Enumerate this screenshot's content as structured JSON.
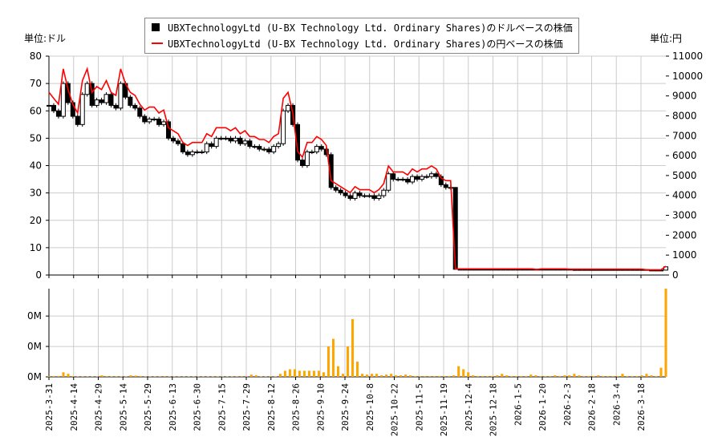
{
  "units": {
    "left": "単位:ドル",
    "right": "単位:円"
  },
  "legend": [
    "UBXTechnologyLtd (U-BX Technology Ltd. Ordinary Shares)のドルベースの株価",
    "UBXTechnologyLtd (U-BX Technology Ltd. Ordinary Shares)の円ベースの株価"
  ],
  "colors": {
    "usd_candle": "#000000",
    "jpy_line": "#ff0000",
    "volume": "#ffa500",
    "grid": "#cccccc"
  },
  "chart_data": [
    {
      "type": "line",
      "title": "",
      "x_tick_labels": [
        "2025-3-31",
        "2025-4-14",
        "2025-4-29",
        "2025-5-14",
        "2025-5-29",
        "2025-6-13",
        "2025-6-30",
        "2025-7-15",
        "2025-7-29",
        "2025-8-12",
        "2025-8-26",
        "2025-9-10",
        "2025-9-24",
        "2025-10-8",
        "2025-10-22",
        "2025-11-5",
        "2025-11-19",
        "2025-12-4",
        "2025-12-18",
        "2026-1-5",
        "2026-1-20",
        "2026-2-3",
        "2026-2-18",
        "2026-3-4",
        "2026-3-18"
      ],
      "y_left": {
        "label": "単位:ドル",
        "range": [
          0,
          80
        ],
        "ticks": [
          0,
          10,
          20,
          30,
          40,
          50,
          60,
          70,
          80
        ]
      },
      "y_right": {
        "label": "単位:円",
        "range": [
          0,
          11000
        ],
        "ticks": [
          0,
          1000,
          2000,
          3000,
          4000,
          5000,
          6000,
          7000,
          8000,
          9000,
          10000,
          11000
        ]
      },
      "grid": true,
      "legend_position": "top-center",
      "series": [
        {
          "name": "UBXTechnologyLtd (U-BX Technology Ltd. Ordinary Shares)のドルベースの株価",
          "style": "candlestick",
          "axis": "left",
          "close": [
            62,
            60,
            58,
            70,
            63,
            58,
            55,
            66,
            70,
            62,
            64,
            63,
            66,
            62,
            61,
            70,
            65,
            62,
            61,
            58,
            56,
            57,
            57,
            55,
            56,
            50,
            49,
            48,
            45,
            44,
            45,
            45,
            45,
            48,
            47,
            50,
            50,
            50,
            49,
            50,
            48,
            49,
            47,
            47,
            46,
            46,
            45,
            47,
            48,
            60,
            62,
            55,
            42,
            40,
            45,
            45,
            47,
            46,
            44,
            32,
            31,
            30,
            29,
            28,
            30,
            29,
            29,
            29,
            28,
            29,
            31,
            37,
            35,
            35,
            35,
            34,
            36,
            35,
            36,
            36,
            37,
            36,
            33,
            32,
            32,
            2.1,
            2.1,
            2.1,
            2.1,
            2.1,
            2.1,
            2.1,
            2.1,
            2.1,
            2.1,
            2.1,
            2.1,
            2.1,
            2.1,
            2.1,
            2.1,
            2.1,
            1.9,
            2.1,
            2.1,
            2.1,
            2.1,
            2.1,
            2.1,
            2.0,
            2.0,
            2.0,
            2.0,
            2.0,
            2.0,
            2.0,
            2.0,
            2.0,
            2.0,
            2.0,
            2.0,
            2.0,
            2.0,
            2.0,
            2.0,
            1.8,
            1.8,
            1.8,
            1.8,
            3.0
          ]
        },
        {
          "name": "UBXTechnologyLtd (U-BX Technology Ltd. Ordinary Shares)の円ベースの株価",
          "style": "line",
          "axis": "right",
          "values": [
            9180,
            8880,
            8580,
            10360,
            9320,
            8580,
            8140,
            9770,
            10360,
            9180,
            9470,
            9320,
            9770,
            9180,
            9030,
            10360,
            9620,
            9180,
            9030,
            8580,
            8290,
            8440,
            8440,
            8140,
            8290,
            7400,
            7250,
            7100,
            6660,
            6510,
            6660,
            6660,
            6660,
            7100,
            6960,
            7400,
            7400,
            7400,
            7250,
            7400,
            7100,
            7250,
            6960,
            6960,
            6810,
            6810,
            6660,
            6960,
            7100,
            8880,
            9180,
            8140,
            6220,
            5920,
            6660,
            6660,
            6960,
            6810,
            6510,
            4740,
            4590,
            4440,
            4290,
            4140,
            4440,
            4290,
            4290,
            4290,
            4140,
            4290,
            4590,
            5480,
            5180,
            5180,
            5180,
            5030,
            5330,
            5180,
            5330,
            5330,
            5480,
            5330,
            4880,
            4740,
            4740,
            310,
            310,
            310,
            310,
            310,
            310,
            310,
            310,
            310,
            310,
            310,
            310,
            310,
            310,
            310,
            310,
            310,
            280,
            310,
            310,
            310,
            310,
            310,
            310,
            295,
            295,
            295,
            295,
            295,
            295,
            295,
            295,
            295,
            295,
            295,
            295,
            295,
            295,
            295,
            295,
            265,
            265,
            265,
            265,
            440
          ]
        }
      ]
    },
    {
      "type": "bar",
      "title": "",
      "y": {
        "tick_labels": [
          "0M",
          "0M",
          "0M"
        ],
        "ticks": [
          0,
          0.2,
          0.4
        ],
        "range": [
          0,
          0.58
        ]
      },
      "grid": true,
      "series": [
        {
          "name": "",
          "values": [
            0.005,
            0.005,
            0.005,
            0.03,
            0.02,
            0.005,
            0.002,
            0.002,
            0.002,
            0.002,
            0.002,
            0.01,
            0.005,
            0.002,
            0.004,
            0.002,
            0.002,
            0.01,
            0.008,
            0.005,
            0.002,
            0.002,
            0.002,
            0.002,
            0.005,
            0.002,
            0.002,
            0.002,
            0.002,
            0.002,
            0.002,
            0.002,
            0.002,
            0.002,
            0.002,
            0.004,
            0.002,
            0.002,
            0.002,
            0.002,
            0.005,
            0.002,
            0.015,
            0.01,
            0.002,
            0.002,
            0.002,
            0.002,
            0.02,
            0.04,
            0.05,
            0.05,
            0.04,
            0.04,
            0.04,
            0.04,
            0.04,
            0.03,
            0.2,
            0.25,
            0.07,
            0.02,
            0.2,
            0.38,
            0.1,
            0.02,
            0.015,
            0.02,
            0.02,
            0.01,
            0.015,
            0.02,
            0.01,
            0.01,
            0.015,
            0.01,
            0.005,
            0.005,
            0.005,
            0.005,
            0.005,
            0.005,
            0.005,
            0.005,
            0.01,
            0.07,
            0.05,
            0.03,
            0.01,
            0.005,
            0.005,
            0.005,
            0.005,
            0.01,
            0.02,
            0.01,
            0.005,
            0.005,
            0.005,
            0.005,
            0.015,
            0.01,
            0.005,
            0.005,
            0.005,
            0.01,
            0.005,
            0.01,
            0.01,
            0.02,
            0.01,
            0.005,
            0.005,
            0.005,
            0.01,
            0.005,
            0.005,
            0.005,
            0.005,
            0.02,
            0.005,
            0.005,
            0.005,
            0.01,
            0.02,
            0.01,
            0.005,
            0.06,
            0.58
          ]
        }
      ]
    }
  ]
}
